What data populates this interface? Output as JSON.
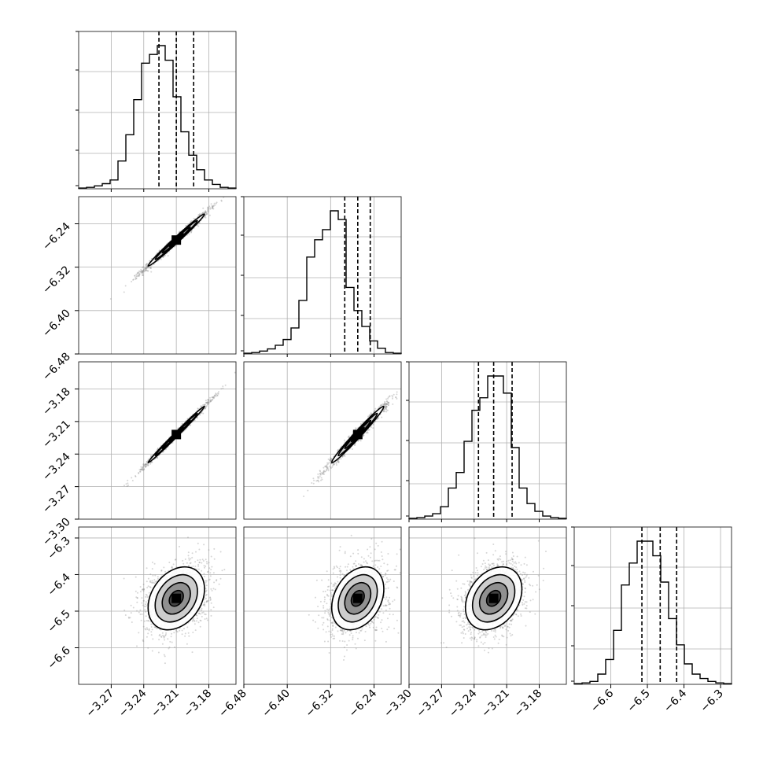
{
  "chart_data": {
    "type": "corner",
    "grid": true,
    "quantiles": [
      0.16,
      0.5,
      0.84
    ],
    "params": [
      {
        "range": [
          -3.3,
          -3.155
        ],
        "ticks": [
          "-3.27",
          "-3.24",
          "-3.21",
          "-3.18"
        ],
        "tick_values": [
          -3.27,
          -3.24,
          -3.21,
          -3.18
        ],
        "median": -3.21,
        "q16": -3.226,
        "q84": -3.194,
        "sigma": 0.013
      },
      {
        "range": [
          -6.48,
          -6.19
        ],
        "ticks": [
          "-6.48",
          "-6.40",
          "-6.32",
          "-6.24"
        ],
        "tick_values": [
          -6.48,
          -6.4,
          -6.32,
          -6.24
        ],
        "median": -6.27,
        "q16": -6.294,
        "q84": -6.247,
        "sigma": 0.024
      },
      {
        "range": [
          -3.3,
          -3.155
        ],
        "ticks": [
          "-3.30",
          "-3.27",
          "-3.24",
          "-3.21",
          "-3.18"
        ],
        "tick_values": [
          -3.3,
          -3.27,
          -3.24,
          -3.21,
          -3.18
        ],
        "median": -3.222,
        "q16": -3.236,
        "q84": -3.205,
        "sigma": 0.013
      },
      {
        "range": [
          -6.7,
          -6.27
        ],
        "ticks": [
          "-6.6",
          "-6.5",
          "-6.4",
          "-6.3"
        ],
        "tick_values": [
          -6.6,
          -6.5,
          -6.4,
          -6.3
        ],
        "median": -6.465,
        "q16": -6.515,
        "q84": -6.42,
        "sigma": 0.043
      }
    ],
    "histograms": [
      {
        "param": 0,
        "bins": 20,
        "counts": [
          0.005,
          0.01,
          0.02,
          0.035,
          0.06,
          0.19,
          0.37,
          0.61,
          0.86,
          0.92,
          0.98,
          0.88,
          0.63,
          0.39,
          0.23,
          0.13,
          0.06,
          0.03,
          0.01,
          0.005
        ]
      },
      {
        "param": 1,
        "bins": 20,
        "counts": [
          0.005,
          0.01,
          0.02,
          0.035,
          0.06,
          0.1,
          0.18,
          0.37,
          0.67,
          0.79,
          0.86,
          0.99,
          0.93,
          0.46,
          0.3,
          0.19,
          0.09,
          0.04,
          0.01,
          0.005
        ]
      },
      {
        "param": 2,
        "bins": 20,
        "counts": [
          0.005,
          0.01,
          0.02,
          0.035,
          0.08,
          0.2,
          0.3,
          0.5,
          0.7,
          0.78,
          0.92,
          0.92,
          0.81,
          0.46,
          0.2,
          0.1,
          0.05,
          0.02,
          0.01,
          0.005
        ]
      },
      {
        "param": 3,
        "bins": 20,
        "counts": [
          0.005,
          0.01,
          0.02,
          0.07,
          0.17,
          0.37,
          0.68,
          0.83,
          0.98,
          0.98,
          0.88,
          0.7,
          0.45,
          0.27,
          0.14,
          0.07,
          0.04,
          0.02,
          0.01,
          0.005
        ]
      }
    ],
    "correlations": [
      {
        "x": 0,
        "y": 1,
        "rho": 0.99
      },
      {
        "x": 0,
        "y": 2,
        "rho": 0.995
      },
      {
        "x": 1,
        "y": 2,
        "rho": 0.985
      },
      {
        "x": 0,
        "y": 3,
        "rho": 0.3
      },
      {
        "x": 1,
        "y": 3,
        "rho": 0.3
      },
      {
        "x": 2,
        "y": 3,
        "rho": 0.3
      }
    ],
    "colors": {
      "line": "#000000",
      "points": "#8a8a8a",
      "contour": "#000000",
      "grid": "#b0b0b0"
    }
  }
}
